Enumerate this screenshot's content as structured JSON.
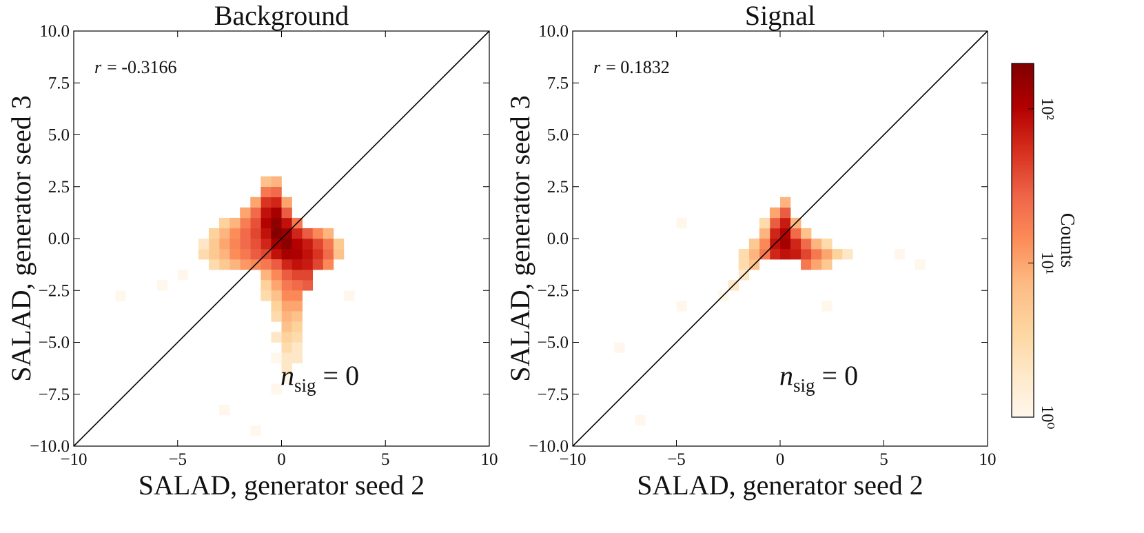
{
  "chart_data": [
    {
      "type": "hist2d",
      "title": "Background",
      "xlabel": "SALAD, generator seed 2",
      "ylabel": "SALAD, generator seed 3",
      "xlim": [
        -10,
        10
      ],
      "ylim": [
        -10,
        10
      ],
      "xticks": [
        {
          "value": -10,
          "label": "−10"
        },
        {
          "value": -5,
          "label": "−5"
        },
        0,
        5,
        10
      ],
      "yticks": [
        {
          "value": -10,
          "label": "−10.0"
        },
        {
          "value": -7.5,
          "label": "−7.5"
        },
        {
          "value": -5,
          "label": "−5.0"
        },
        {
          "value": -2.5,
          "label": "−2.5"
        },
        {
          "value": 0,
          "label": "0.0"
        },
        {
          "value": 2.5,
          "label": "2.5"
        },
        {
          "value": 5,
          "label": "5.0"
        },
        {
          "value": 7.5,
          "label": "7.5"
        },
        {
          "value": 10,
          "label": "10.0"
        }
      ],
      "diagonal": true,
      "r_annotation": {
        "symbol": "r",
        "text": "= -0.3166"
      },
      "n_annotation": {
        "symbol": "n",
        "subscript": "sig",
        "text": "= 0"
      },
      "bin_width": 0.5,
      "cells": [
        [
          -1,
          -1,
          40
        ],
        [
          -1,
          -0.5,
          60
        ],
        [
          -1,
          0,
          80
        ],
        [
          -1,
          0.5,
          100
        ],
        [
          -1,
          1,
          80
        ],
        [
          -1,
          1.5,
          50
        ],
        [
          -1,
          2,
          20
        ],
        [
          -1,
          2.5,
          6
        ],
        [
          -0.5,
          -1,
          80
        ],
        [
          -0.5,
          -0.5,
          120
        ],
        [
          -0.5,
          0,
          180
        ],
        [
          -0.5,
          0.5,
          160
        ],
        [
          -0.5,
          1,
          120
        ],
        [
          -0.5,
          1.5,
          60
        ],
        [
          -0.5,
          2,
          25
        ],
        [
          -0.5,
          2.5,
          8
        ],
        [
          0,
          -1.5,
          60
        ],
        [
          0,
          -1,
          120
        ],
        [
          0,
          -0.5,
          170
        ],
        [
          0,
          0,
          140
        ],
        [
          0,
          0.5,
          80
        ],
        [
          0,
          1,
          30
        ],
        [
          0,
          1.5,
          10
        ],
        [
          0.5,
          -2,
          40
        ],
        [
          0.5,
          -1.5,
          80
        ],
        [
          0.5,
          -1,
          110
        ],
        [
          0.5,
          -0.5,
          100
        ],
        [
          0.5,
          0,
          60
        ],
        [
          0.5,
          0.5,
          20
        ],
        [
          1,
          -2.5,
          30
        ],
        [
          1,
          -2,
          40
        ],
        [
          1,
          -1.5,
          70
        ],
        [
          1,
          -1,
          80
        ],
        [
          1,
          -0.5,
          70
        ],
        [
          1,
          0,
          30
        ],
        [
          1.5,
          -1.5,
          40
        ],
        [
          1.5,
          -1,
          50
        ],
        [
          1.5,
          -0.5,
          40
        ],
        [
          1.5,
          0,
          15
        ],
        [
          2,
          -1.5,
          15
        ],
        [
          2,
          -1,
          25
        ],
        [
          2,
          -0.5,
          20
        ],
        [
          2,
          0,
          8
        ],
        [
          2.5,
          -1,
          6
        ],
        [
          2.5,
          -0.5,
          5
        ],
        [
          -1.5,
          -1.5,
          15
        ],
        [
          -1.5,
          -1,
          30
        ],
        [
          -1.5,
          -0.5,
          35
        ],
        [
          -1.5,
          0,
          40
        ],
        [
          -1.5,
          0.5,
          35
        ],
        [
          -1.5,
          1,
          25
        ],
        [
          -1.5,
          1.5,
          10
        ],
        [
          -2,
          -1.5,
          12
        ],
        [
          -2,
          -1,
          20
        ],
        [
          -2,
          -0.5,
          25
        ],
        [
          -2,
          0,
          25
        ],
        [
          -2,
          0.5,
          18
        ],
        [
          -2,
          1,
          10
        ],
        [
          -2.5,
          -1.5,
          8
        ],
        [
          -2.5,
          -1,
          14
        ],
        [
          -2.5,
          -0.5,
          16
        ],
        [
          -2.5,
          0,
          14
        ],
        [
          -2.5,
          0.5,
          8
        ],
        [
          -3,
          -1.5,
          5
        ],
        [
          -3,
          -1,
          8
        ],
        [
          -3,
          -0.5,
          10
        ],
        [
          -3,
          0,
          8
        ],
        [
          -3,
          0.5,
          4
        ],
        [
          -3.5,
          -1.5,
          3
        ],
        [
          -3.5,
          -1,
          5
        ],
        [
          -3.5,
          -0.5,
          5
        ],
        [
          -3.5,
          0,
          4
        ],
        [
          -4,
          -1,
          3
        ],
        [
          -4,
          -0.5,
          2
        ],
        [
          0,
          -2,
          30
        ],
        [
          0,
          -2.5,
          20
        ],
        [
          0,
          -3,
          15
        ],
        [
          0,
          -3.5,
          10
        ],
        [
          0,
          -4,
          8
        ],
        [
          0,
          -4.5,
          6
        ],
        [
          0,
          -5,
          4
        ],
        [
          0,
          -5.5,
          3
        ],
        [
          0,
          -6,
          2
        ],
        [
          0,
          -6.5,
          2
        ],
        [
          0,
          -7,
          1
        ],
        [
          0.5,
          -2.5,
          25
        ],
        [
          0.5,
          -3,
          15
        ],
        [
          0.5,
          -3.5,
          10
        ],
        [
          0.5,
          -4,
          6
        ],
        [
          0.5,
          -4.5,
          4
        ],
        [
          0.5,
          -5,
          3
        ],
        [
          0.5,
          -5.5,
          2
        ],
        [
          0.5,
          -6,
          2
        ],
        [
          -0.5,
          -1.5,
          30
        ],
        [
          -0.5,
          -2,
          15
        ],
        [
          -0.5,
          -2.5,
          10
        ],
        [
          -0.5,
          -3,
          6
        ],
        [
          -0.5,
          -3.5,
          4
        ],
        [
          -0.5,
          -4,
          3
        ],
        [
          -0.5,
          -5,
          2
        ],
        [
          -0.5,
          -6,
          1
        ],
        [
          -0.5,
          -7.5,
          1
        ],
        [
          -1,
          -1.5,
          20
        ],
        [
          -1,
          -2,
          8
        ],
        [
          -1,
          -2.5,
          4
        ],
        [
          -1,
          -3,
          3
        ],
        [
          -6,
          -2.5,
          1
        ],
        [
          -8,
          -3,
          1
        ],
        [
          -3,
          -8.5,
          1
        ],
        [
          -1.5,
          -9.5,
          1
        ],
        [
          -5,
          -2,
          1
        ],
        [
          3,
          -3,
          1
        ]
      ]
    },
    {
      "type": "hist2d",
      "title": "Signal",
      "xlabel": "SALAD, generator seed 2",
      "ylabel": "SALAD, generator seed 3",
      "xlim": [
        -10,
        10
      ],
      "ylim": [
        -10,
        10
      ],
      "xticks": [
        {
          "value": -10,
          "label": "−10"
        },
        {
          "value": -5,
          "label": "−5"
        },
        0,
        5,
        10
      ],
      "yticks": [
        {
          "value": -10,
          "label": "−10.0"
        },
        {
          "value": -7.5,
          "label": "−7.5"
        },
        {
          "value": -5,
          "label": "−5.0"
        },
        {
          "value": -2.5,
          "label": "−2.5"
        },
        {
          "value": 0,
          "label": "0.0"
        },
        {
          "value": 2.5,
          "label": "2.5"
        },
        {
          "value": 5,
          "label": "5.0"
        },
        {
          "value": 7.5,
          "label": "7.5"
        },
        {
          "value": 10,
          "label": "10.0"
        }
      ],
      "diagonal": true,
      "r_annotation": {
        "symbol": "r",
        "text": "= 0.1832"
      },
      "n_annotation": {
        "symbol": "n",
        "subscript": "sig",
        "text": "= 0"
      },
      "bin_width": 0.5,
      "cells": [
        [
          -0.5,
          -1,
          60
        ],
        [
          -0.5,
          -0.5,
          80
        ],
        [
          -0.5,
          0,
          60
        ],
        [
          -0.5,
          0.5,
          30
        ],
        [
          -0.5,
          1,
          10
        ],
        [
          0,
          -1,
          80
        ],
        [
          0,
          -0.5,
          120
        ],
        [
          0,
          0,
          100
        ],
        [
          0,
          0.5,
          70
        ],
        [
          0,
          1,
          30
        ],
        [
          0,
          1.5,
          8
        ],
        [
          0.5,
          -1,
          70
        ],
        [
          0.5,
          -0.5,
          60
        ],
        [
          0.5,
          0,
          25
        ],
        [
          0.5,
          0.5,
          8
        ],
        [
          1,
          -1.5,
          20
        ],
        [
          1,
          -1,
          40
        ],
        [
          1,
          -0.5,
          25
        ],
        [
          1,
          0,
          6
        ],
        [
          1.5,
          -1.5,
          10
        ],
        [
          1.5,
          -1,
          20
        ],
        [
          1.5,
          -0.5,
          8
        ],
        [
          2,
          -1.5,
          5
        ],
        [
          2,
          -1,
          10
        ],
        [
          2,
          -0.5,
          3
        ],
        [
          2.5,
          -1,
          4
        ],
        [
          3,
          -1,
          2
        ],
        [
          -1,
          -1,
          20
        ],
        [
          -1,
          -0.5,
          15
        ],
        [
          -1,
          0,
          8
        ],
        [
          -1,
          0.5,
          3
        ],
        [
          -1.5,
          -1.5,
          6
        ],
        [
          -1.5,
          -1,
          8
        ],
        [
          -1.5,
          -0.5,
          5
        ],
        [
          -2,
          -1.5,
          3
        ],
        [
          -2,
          -1,
          3
        ],
        [
          -2,
          -2,
          2
        ],
        [
          -2.5,
          -2.5,
          2
        ],
        [
          -3,
          -3,
          1
        ],
        [
          -8,
          -5.5,
          1
        ],
        [
          -7,
          -9,
          1
        ],
        [
          6.5,
          -1.5,
          1
        ],
        [
          5.5,
          -1,
          1
        ],
        [
          -5,
          -3.5,
          1
        ],
        [
          2,
          -3.5,
          1
        ],
        [
          -5,
          0.5,
          1
        ]
      ]
    }
  ],
  "colorbar": {
    "label": "Counts",
    "scale": "log",
    "lim": [
      1,
      197
    ],
    "ticks": [
      {
        "value": 1,
        "label": "10⁰"
      },
      {
        "value": 10,
        "label": "10¹"
      },
      {
        "value": 100,
        "label": "10²"
      }
    ],
    "colors": [
      "#fff7ec",
      "#fee8c8",
      "#fdd49e",
      "#fdbb84",
      "#fc8d59",
      "#ef6548",
      "#d7301f",
      "#b30000",
      "#7f0000"
    ]
  }
}
